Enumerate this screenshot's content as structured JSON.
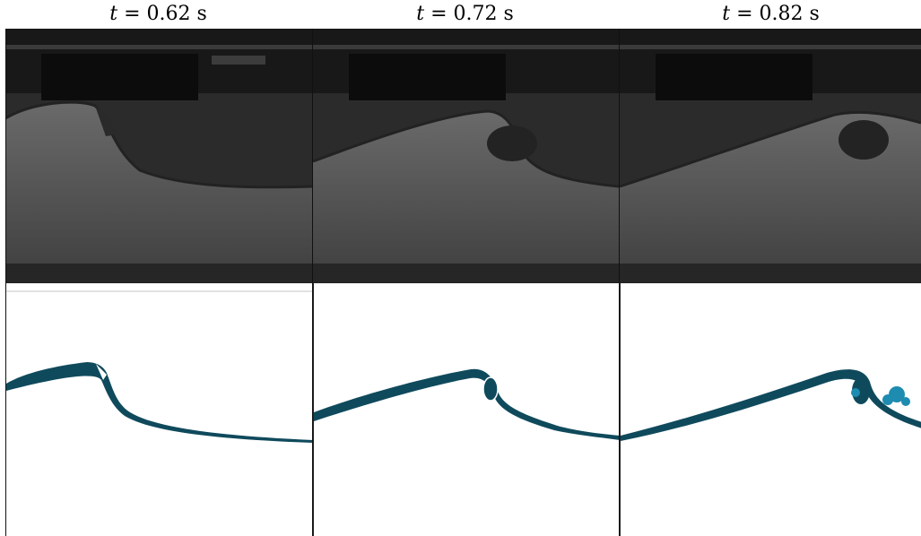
{
  "figure": {
    "panels": [
      {
        "time_var": "t",
        "equals": "=",
        "value": "0.62",
        "unit": "s"
      },
      {
        "time_var": "t",
        "equals": "=",
        "value": "0.72",
        "unit": "s"
      },
      {
        "time_var": "t",
        "equals": "=",
        "value": "0.82",
        "unit": "s"
      }
    ]
  },
  "colors": {
    "photo_bg_top": "#1a1a1a",
    "photo_water": "#5e5e5e",
    "photo_floor": "#2a2a2a",
    "sim_wave": "#0f4a5c",
    "sim_spray": "#1e8bb0"
  }
}
